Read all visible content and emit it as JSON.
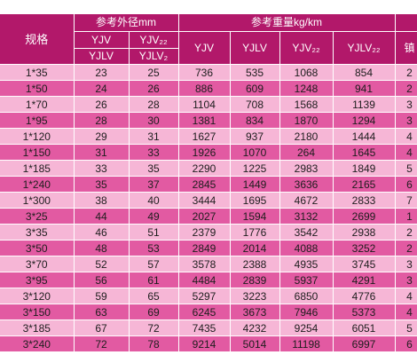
{
  "header": {
    "spec_label": "规格",
    "od_group": "参考外径mm",
    "weight_group": "参考重量kg/km",
    "od_col1_top": "YJV",
    "od_col1_bottom": "YJLV",
    "od_col2_top": "YJV₂₂",
    "od_col2_bottom": "YJLV₂",
    "weight_cols": [
      "YJV",
      "YJLV",
      "YJV₂₂",
      "YJLV₂₂"
    ],
    "partial_col": "镇"
  },
  "rows": [
    {
      "spec": "1*35",
      "od1": "23",
      "od2": "25",
      "w": [
        "736",
        "535",
        "1068",
        "854"
      ],
      "edge": "2"
    },
    {
      "spec": "1*50",
      "od1": "24",
      "od2": "26",
      "w": [
        "886",
        "609",
        "1248",
        "941"
      ],
      "edge": "2"
    },
    {
      "spec": "1*70",
      "od1": "26",
      "od2": "28",
      "w": [
        "1104",
        "708",
        "1568",
        "1139"
      ],
      "edge": "3"
    },
    {
      "spec": "1*95",
      "od1": "28",
      "od2": "30",
      "w": [
        "1381",
        "834",
        "1870",
        "1294"
      ],
      "edge": "3"
    },
    {
      "spec": "1*120",
      "od1": "29",
      "od2": "31",
      "w": [
        "1627",
        "937",
        "2180",
        "1444"
      ],
      "edge": "4"
    },
    {
      "spec": "1*150",
      "od1": "31",
      "od2": "33",
      "w": [
        "1926",
        "1070",
        "264",
        "1645"
      ],
      "edge": "4"
    },
    {
      "spec": "1*185",
      "od1": "33",
      "od2": "35",
      "w": [
        "2290",
        "1225",
        "2983",
        "1849"
      ],
      "edge": "5"
    },
    {
      "spec": "1*240",
      "od1": "35",
      "od2": "37",
      "w": [
        "2845",
        "1449",
        "3636",
        "2165"
      ],
      "edge": "6"
    },
    {
      "spec": "1*300",
      "od1": "38",
      "od2": "40",
      "w": [
        "3444",
        "1695",
        "4672",
        "2833"
      ],
      "edge": "7"
    },
    {
      "spec": "3*25",
      "od1": "44",
      "od2": "49",
      "w": [
        "2027",
        "1594",
        "3132",
        "2699"
      ],
      "edge": "1"
    },
    {
      "spec": "3*35",
      "od1": "46",
      "od2": "51",
      "w": [
        "2379",
        "1776",
        "3542",
        "2938"
      ],
      "edge": "2"
    },
    {
      "spec": "3*50",
      "od1": "48",
      "od2": "53",
      "w": [
        "2849",
        "2014",
        "4088",
        "3252"
      ],
      "edge": "2"
    },
    {
      "spec": "3*70",
      "od1": "52",
      "od2": "57",
      "w": [
        "3578",
        "2388",
        "4935",
        "3745"
      ],
      "edge": "3"
    },
    {
      "spec": "3*95",
      "od1": "56",
      "od2": "61",
      "w": [
        "4484",
        "2839",
        "5937",
        "4291"
      ],
      "edge": "3"
    },
    {
      "spec": "3*120",
      "od1": "59",
      "od2": "65",
      "w": [
        "5297",
        "3223",
        "6850",
        "4776"
      ],
      "edge": "4"
    },
    {
      "spec": "3*150",
      "od1": "63",
      "od2": "69",
      "w": [
        "6245",
        "3673",
        "7946",
        "5373"
      ],
      "edge": "4"
    },
    {
      "spec": "3*185",
      "od1": "67",
      "od2": "72",
      "w": [
        "7435",
        "4232",
        "9254",
        "6051"
      ],
      "edge": "5"
    },
    {
      "spec": "3*240",
      "od1": "72",
      "od2": "78",
      "w": [
        "9214",
        "5014",
        "11198",
        "6997"
      ],
      "edge": "6"
    }
  ]
}
